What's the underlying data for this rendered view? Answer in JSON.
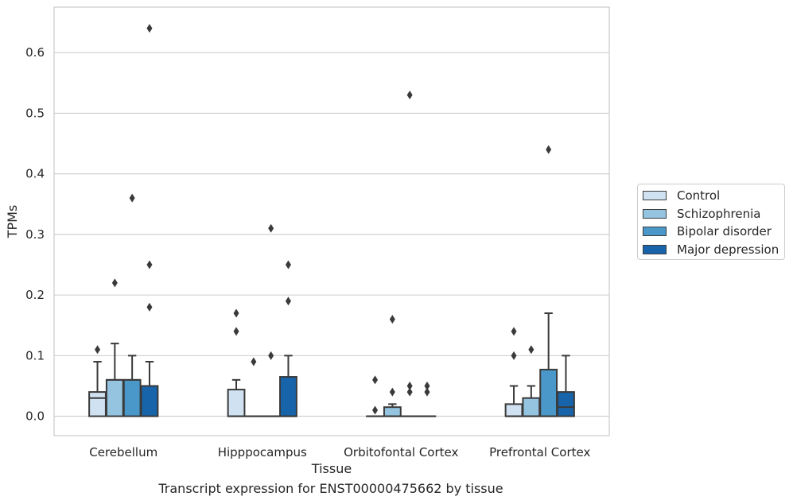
{
  "chart_data": {
    "type": "box",
    "xlabel": "Tissue",
    "ylabel": "TPMs",
    "ylim": [
      -0.032,
      0.675
    ],
    "yticks": [
      "0.0",
      "0.1",
      "0.2",
      "0.3",
      "0.4",
      "0.5",
      "0.6"
    ],
    "grid": true,
    "legend_position": "right",
    "categories": [
      "Cerebellum",
      "Hipppocampus",
      "Orbitofontal Cortex",
      "Prefrontal Cortex"
    ],
    "series": [
      {
        "name": "Control",
        "color": "#d0e1f2",
        "boxes": [
          {
            "q1": 0.0,
            "median": 0.03,
            "q3": 0.04,
            "whisker_low": 0.0,
            "whisker_high": 0.09,
            "outliers": [
              0.11
            ]
          },
          {
            "q1": 0.0,
            "median": 0.0,
            "q3": 0.044,
            "whisker_low": 0.0,
            "whisker_high": 0.06,
            "outliers": [
              0.14,
              0.17
            ]
          },
          {
            "q1": 0.0,
            "median": 0.0,
            "q3": 0.0,
            "whisker_low": 0.0,
            "whisker_high": 0.0,
            "outliers": [
              0.01,
              0.06
            ]
          },
          {
            "q1": 0.0,
            "median": 0.0,
            "q3": 0.02,
            "whisker_low": 0.0,
            "whisker_high": 0.05,
            "outliers": [
              0.1,
              0.14
            ]
          }
        ]
      },
      {
        "name": "Schizophrenia",
        "color": "#94c4df",
        "boxes": [
          {
            "q1": 0.0,
            "median": 0.06,
            "q3": 0.06,
            "whisker_low": 0.0,
            "whisker_high": 0.12,
            "outliers": [
              0.22
            ]
          },
          {
            "q1": 0.0,
            "median": 0.0,
            "q3": 0.0,
            "whisker_low": 0.0,
            "whisker_high": 0.0,
            "outliers": [
              0.09
            ]
          },
          {
            "q1": 0.0,
            "median": 0.0,
            "q3": 0.015,
            "whisker_low": 0.0,
            "whisker_high": 0.02,
            "outliers": [
              0.04,
              0.16
            ]
          },
          {
            "q1": 0.0,
            "median": 0.0,
            "q3": 0.03,
            "whisker_low": 0.0,
            "whisker_high": 0.05,
            "outliers": [
              0.11
            ]
          }
        ]
      },
      {
        "name": "Bipolar disorder",
        "color": "#4a98c9",
        "boxes": [
          {
            "q1": 0.0,
            "median": 0.06,
            "q3": 0.06,
            "whisker_low": 0.0,
            "whisker_high": 0.1,
            "outliers": [
              0.36
            ]
          },
          {
            "q1": 0.0,
            "median": 0.0,
            "q3": 0.0,
            "whisker_low": 0.0,
            "whisker_high": 0.0,
            "outliers": [
              0.1,
              0.31
            ]
          },
          {
            "q1": 0.0,
            "median": 0.0,
            "q3": 0.0,
            "whisker_low": 0.0,
            "whisker_high": 0.0,
            "outliers": [
              0.04,
              0.05,
              0.53
            ]
          },
          {
            "q1": 0.0,
            "median": 0.0,
            "q3": 0.077,
            "whisker_low": 0.0,
            "whisker_high": 0.17,
            "outliers": [
              0.44
            ]
          }
        ]
      },
      {
        "name": "Major depression",
        "color": "#1764ab",
        "boxes": [
          {
            "q1": 0.0,
            "median": 0.05,
            "q3": 0.05,
            "whisker_low": 0.0,
            "whisker_high": 0.09,
            "outliers": [
              0.18,
              0.25,
              0.64
            ]
          },
          {
            "q1": 0.0,
            "median": 0.0,
            "q3": 0.065,
            "whisker_low": 0.0,
            "whisker_high": 0.1,
            "outliers": [
              0.19,
              0.25
            ]
          },
          {
            "q1": 0.0,
            "median": 0.0,
            "q3": 0.0,
            "whisker_low": 0.0,
            "whisker_high": 0.0,
            "outliers": [
              0.04,
              0.05
            ]
          },
          {
            "q1": 0.0,
            "median": 0.015,
            "q3": 0.04,
            "whisker_low": 0.0,
            "whisker_high": 0.1,
            "outliers": []
          }
        ]
      }
    ]
  },
  "caption": "Transcript expression for ENST00000475662 by tissue"
}
